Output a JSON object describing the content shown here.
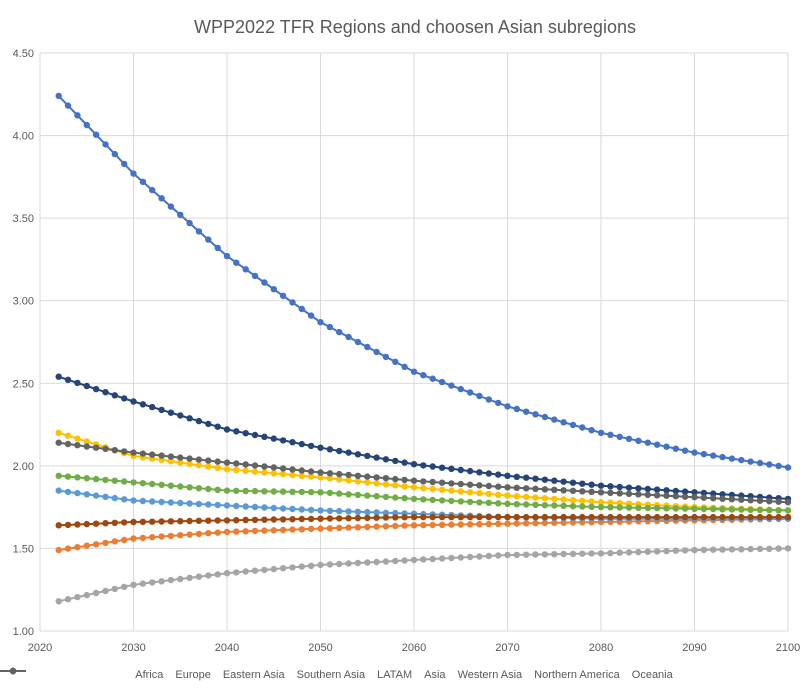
{
  "chart_data": {
    "type": "line",
    "title": "WPP2022 TFR Regions and choosen Asian subregions",
    "xlim": [
      2020,
      2100
    ],
    "ylim": [
      1.0,
      4.5
    ],
    "x_ticks": [
      "2020",
      "2030",
      "2040",
      "2050",
      "2060",
      "2070",
      "2080",
      "2090",
      "2100"
    ],
    "y_ticks": [
      "1.00",
      "1.50",
      "2.00",
      "2.50",
      "3.00",
      "3.50",
      "4.00",
      "4.50"
    ],
    "grid": true,
    "legend_position": "bottom",
    "x": [
      2022,
      2030,
      2040,
      2050,
      2060,
      2070,
      2080,
      2090,
      2100
    ],
    "series": [
      {
        "name": "Africa",
        "color": "#4472C4",
        "values": [
          4.24,
          3.77,
          3.27,
          2.87,
          2.57,
          2.36,
          2.2,
          2.08,
          1.99
        ]
      },
      {
        "name": "Europe",
        "color": "#ED7D31",
        "values": [
          1.49,
          1.56,
          1.6,
          1.62,
          1.64,
          1.65,
          1.66,
          1.67,
          1.68
        ]
      },
      {
        "name": "Eastern Asia",
        "color": "#A5A5A5",
        "values": [
          1.18,
          1.28,
          1.35,
          1.4,
          1.43,
          1.46,
          1.47,
          1.49,
          1.5
        ]
      },
      {
        "name": "Southern Asia",
        "color": "#FFC000",
        "values": [
          2.2,
          2.06,
          1.98,
          1.93,
          1.87,
          1.82,
          1.78,
          1.75,
          1.73
        ]
      },
      {
        "name": "LATAM",
        "color": "#5B9BD5",
        "values": [
          1.85,
          1.79,
          1.76,
          1.73,
          1.71,
          1.69,
          1.68,
          1.68,
          1.68
        ]
      },
      {
        "name": "Asia",
        "color": "#70AD47",
        "values": [
          1.94,
          1.9,
          1.85,
          1.84,
          1.8,
          1.77,
          1.75,
          1.74,
          1.73
        ]
      },
      {
        "name": "Western Asia",
        "color": "#264478",
        "values": [
          2.54,
          2.39,
          2.22,
          2.11,
          2.01,
          1.94,
          1.88,
          1.84,
          1.8
        ]
      },
      {
        "name": "Northern America",
        "color": "#9E480E",
        "values": [
          1.64,
          1.66,
          1.67,
          1.68,
          1.69,
          1.69,
          1.69,
          1.69,
          1.69
        ]
      },
      {
        "name": "Oceania",
        "color": "#636363",
        "values": [
          2.14,
          2.08,
          2.02,
          1.96,
          1.91,
          1.87,
          1.84,
          1.81,
          1.78
        ]
      }
    ]
  }
}
